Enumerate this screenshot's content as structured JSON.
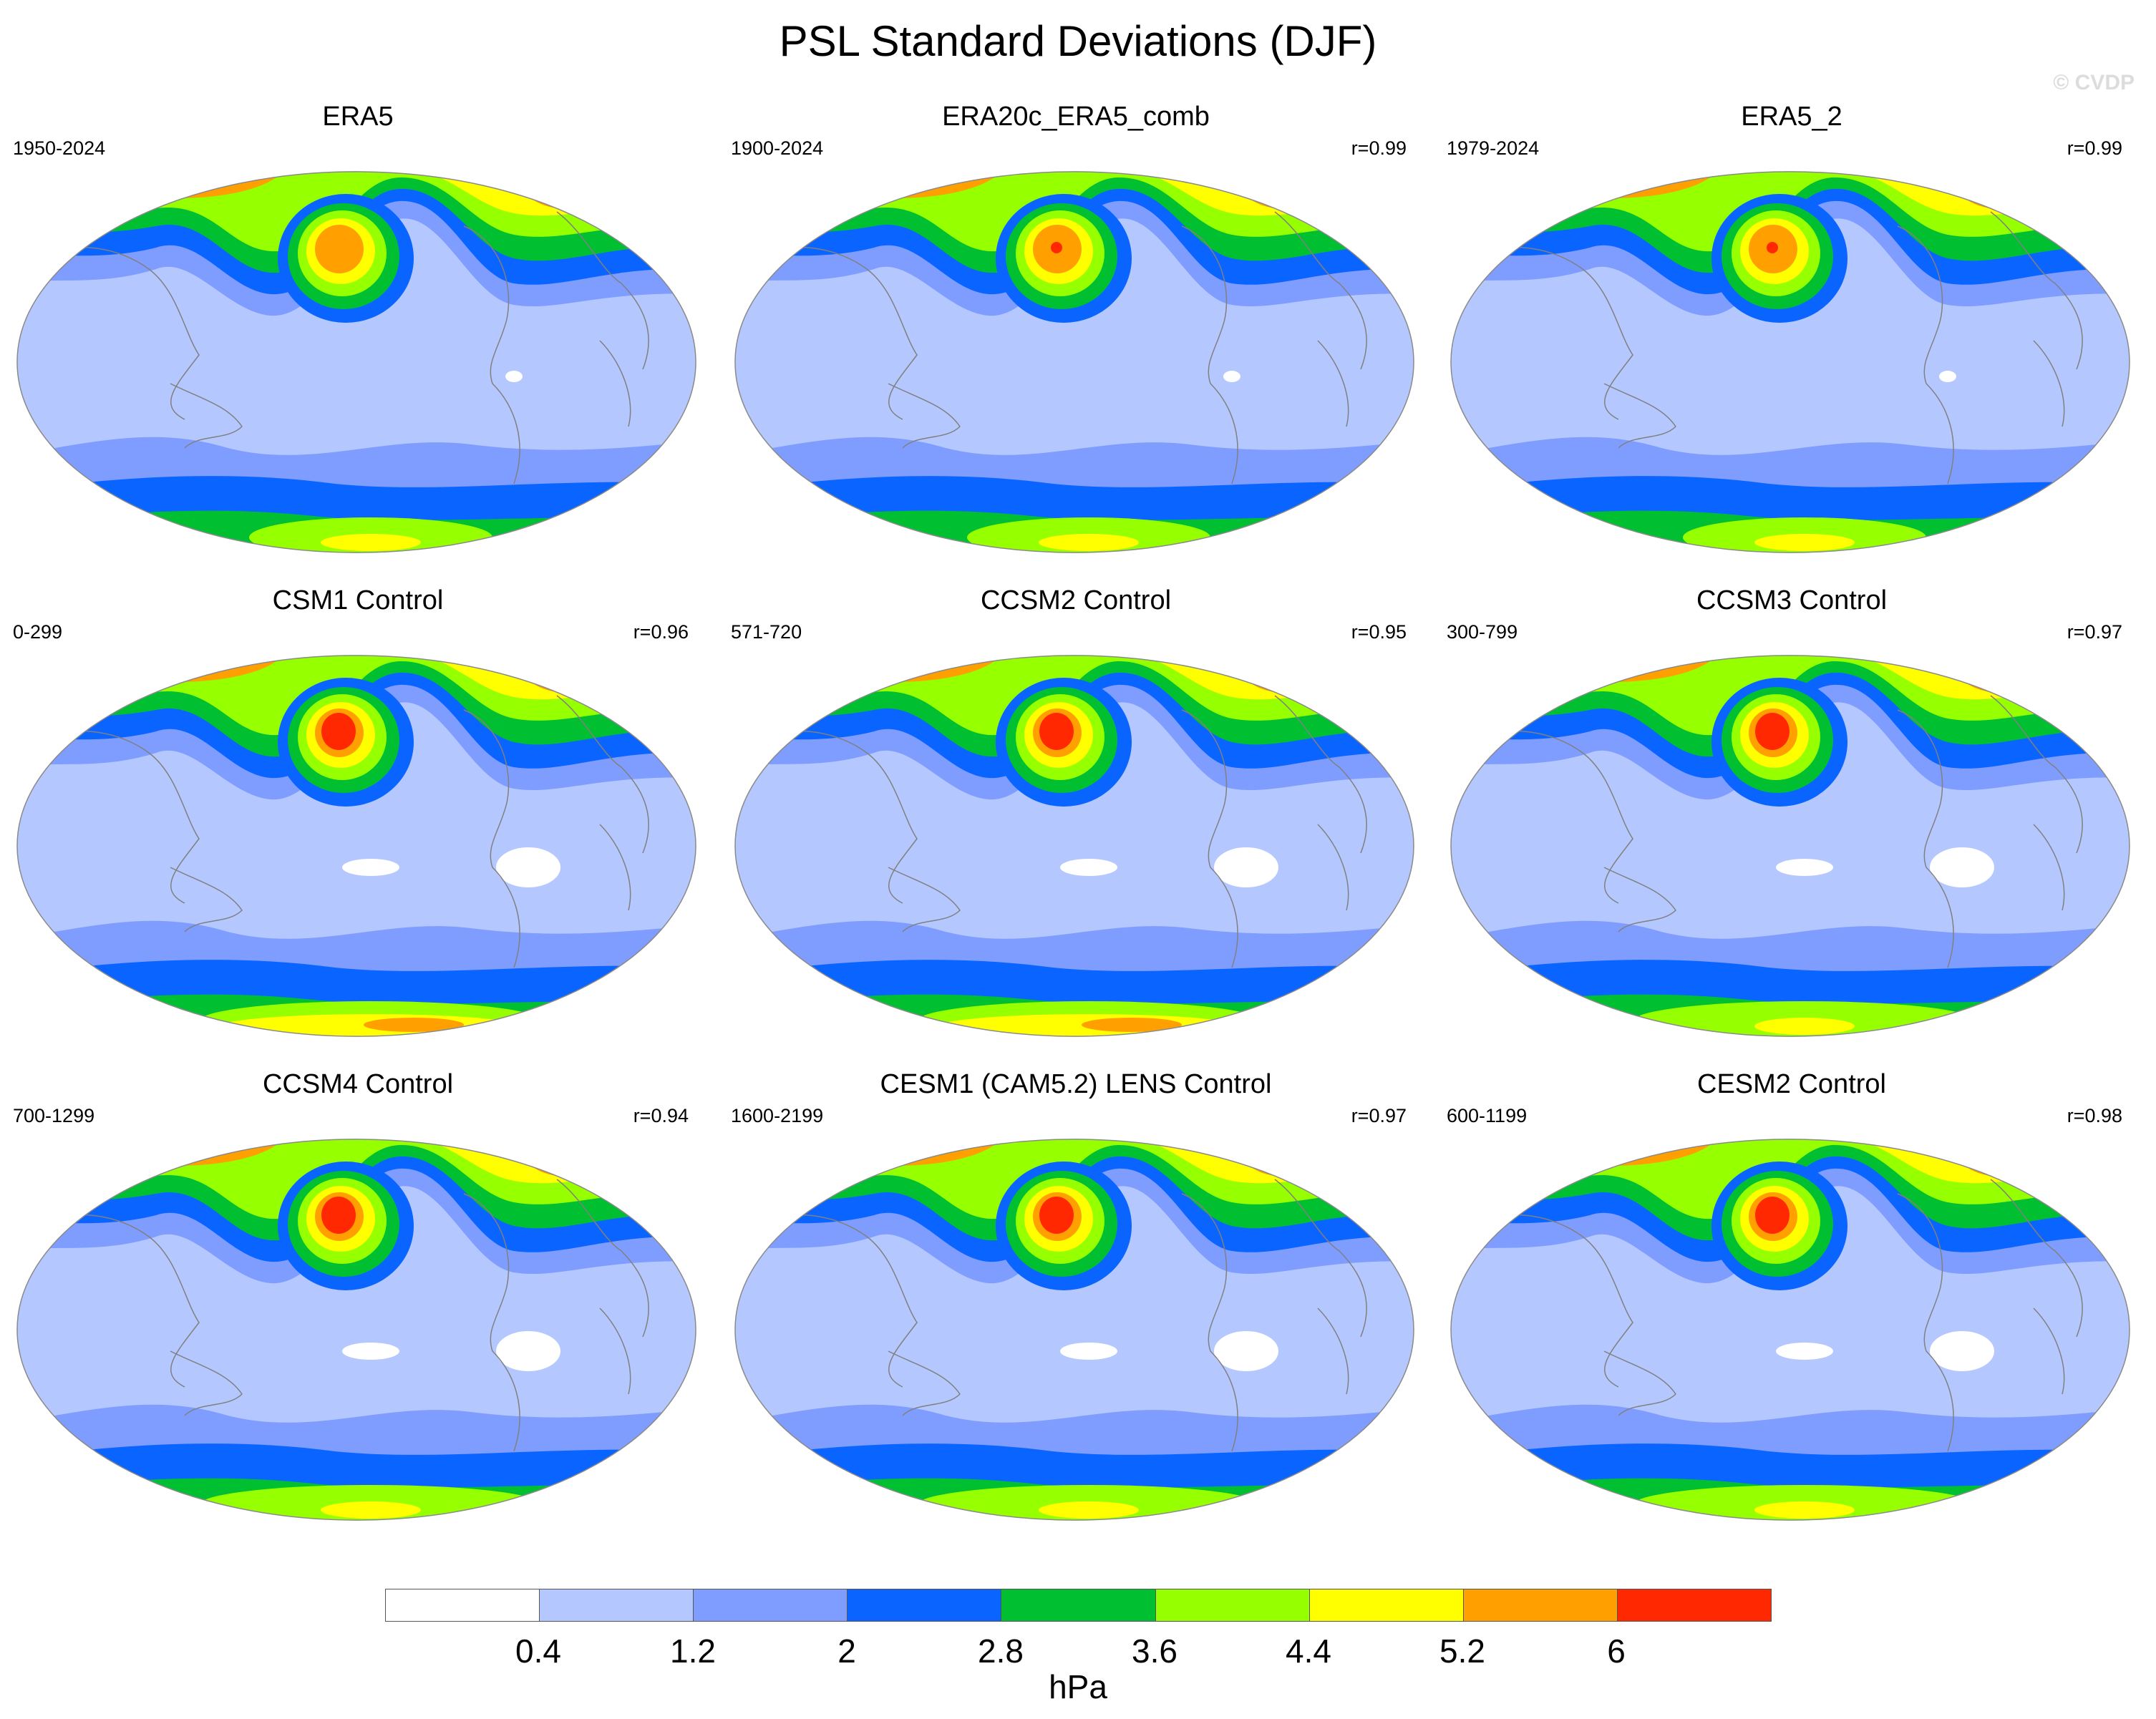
{
  "title": "PSL Standard Deviations (DJF)",
  "watermark": "© CVDP",
  "panels": [
    {
      "name": "ERA5",
      "period": "1950-2024",
      "r": ""
    },
    {
      "name": "ERA20c_ERA5_comb",
      "period": "1900-2024",
      "r": "r=0.99"
    },
    {
      "name": "ERA5_2",
      "period": "1979-2024",
      "r": "r=0.99"
    },
    {
      "name": "CSM1 Control",
      "period": "0-299",
      "r": "r=0.96"
    },
    {
      "name": "CCSM2 Control",
      "period": "571-720",
      "r": "r=0.95"
    },
    {
      "name": "CCSM3 Control",
      "period": "300-799",
      "r": "r=0.97"
    },
    {
      "name": "CCSM4 Control",
      "period": "700-1299",
      "r": "r=0.94"
    },
    {
      "name": "CESM1 (CAM5.2) LENS Control",
      "period": "1600-2199",
      "r": "r=0.97"
    },
    {
      "name": "CESM2 Control",
      "period": "600-1199",
      "r": "r=0.98"
    }
  ],
  "colorbar": {
    "colors": [
      "#ffffff",
      "#b4c8ff",
      "#7f9cff",
      "#0a64ff",
      "#00c032",
      "#96ff00",
      "#ffff00",
      "#ffa000",
      "#ff2800"
    ],
    "ticks": [
      "0.4",
      "1.2",
      "2",
      "2.8",
      "3.6",
      "4.4",
      "5.2",
      "6"
    ],
    "units": "hPa"
  }
}
